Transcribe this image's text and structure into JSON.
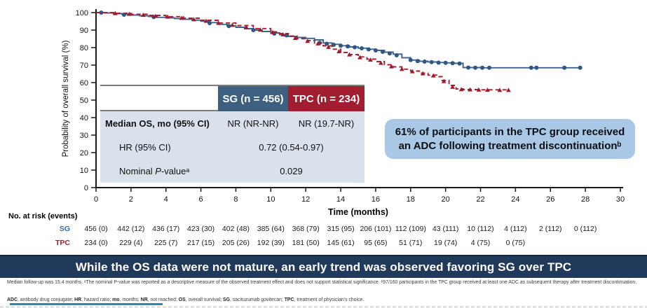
{
  "chart_data": {
    "type": "line",
    "subtype": "kaplan-meier-step",
    "title": "",
    "xlabel": "Time (months)",
    "ylabel": "Probability of overall survival (%)",
    "xlim": [
      0,
      30
    ],
    "ylim": [
      0,
      100
    ],
    "grid": false,
    "x_ticks": [
      0,
      2,
      4,
      6,
      8,
      10,
      12,
      14,
      16,
      18,
      20,
      22,
      24,
      26,
      28,
      30
    ],
    "y_ticks": [
      0,
      10,
      20,
      30,
      40,
      50,
      60,
      70,
      80,
      90,
      100
    ],
    "series": [
      {
        "name": "SG",
        "color": "#3d6590",
        "marker_color": "#2e5784",
        "style": "solid",
        "marker": "circle",
        "points": [
          [
            0,
            100
          ],
          [
            0.5,
            99.8
          ],
          [
            1,
            99.4
          ],
          [
            1.5,
            99
          ],
          [
            2,
            98.6
          ],
          [
            2.5,
            98.2
          ],
          [
            3,
            97.8
          ],
          [
            3.5,
            97.3
          ],
          [
            4,
            97
          ],
          [
            4.5,
            96.6
          ],
          [
            5,
            96.2
          ],
          [
            5.5,
            95.7
          ],
          [
            6,
            95.1
          ],
          [
            6.5,
            94.3
          ],
          [
            7,
            93.3
          ],
          [
            7.5,
            92.5
          ],
          [
            8,
            91.6
          ],
          [
            8.5,
            90.8
          ],
          [
            9,
            90
          ],
          [
            9.5,
            89.2
          ],
          [
            10,
            88.4
          ],
          [
            10.5,
            87.4
          ],
          [
            11,
            86.4
          ],
          [
            11.5,
            85.8
          ],
          [
            12,
            85.3
          ],
          [
            12.5,
            84.4
          ],
          [
            13,
            82.7
          ],
          [
            13.5,
            81.9
          ],
          [
            14,
            81.1
          ],
          [
            14.5,
            80.4
          ],
          [
            15,
            79.7
          ],
          [
            15.5,
            79.1
          ],
          [
            16,
            78.4
          ],
          [
            16.5,
            77.4
          ],
          [
            17,
            76.3
          ],
          [
            17.5,
            74.2
          ],
          [
            18,
            72.9
          ],
          [
            18.5,
            72.2
          ],
          [
            19,
            71.8
          ],
          [
            19.5,
            71.5
          ],
          [
            20,
            71.3
          ],
          [
            20.5,
            71
          ],
          [
            21,
            68.6
          ],
          [
            22,
            68.5
          ],
          [
            27.7,
            68.5
          ]
        ],
        "censor_marks": [
          [
            0.3,
            100
          ],
          [
            1.6,
            98.8
          ],
          [
            3.3,
            97.5
          ],
          [
            6.5,
            94
          ],
          [
            7.6,
            92.3
          ],
          [
            9,
            90
          ],
          [
            10.2,
            88
          ],
          [
            10.9,
            87
          ],
          [
            12.8,
            82.7
          ],
          [
            13.2,
            82.2
          ],
          [
            13.6,
            81.6
          ],
          [
            14,
            81.1
          ],
          [
            14.4,
            80.7
          ],
          [
            14.8,
            80.2
          ],
          [
            15.2,
            79.6
          ],
          [
            15.6,
            79
          ],
          [
            16,
            78.4
          ],
          [
            16.4,
            77.6
          ],
          [
            16.8,
            76.7
          ],
          [
            17.2,
            75.6
          ],
          [
            18,
            72.9
          ],
          [
            18.4,
            72.3
          ],
          [
            18.8,
            72
          ],
          [
            19.2,
            71.7
          ],
          [
            19.6,
            71.4
          ],
          [
            20,
            71.3
          ],
          [
            20.4,
            71.1
          ],
          [
            20.8,
            70.9
          ],
          [
            21.3,
            68.6
          ],
          [
            21.7,
            68.5
          ],
          [
            22.1,
            68.5
          ],
          [
            22.5,
            68.5
          ],
          [
            24.9,
            68.5
          ],
          [
            25.2,
            68.5
          ],
          [
            26.8,
            68.5
          ],
          [
            27.7,
            68.5
          ]
        ]
      },
      {
        "name": "TPC",
        "color": "#a81f2f",
        "marker_color": "#9c1c2c",
        "style": "dashed",
        "marker": "triangle",
        "points": [
          [
            0,
            100
          ],
          [
            1,
            99.6
          ],
          [
            2,
            99.1
          ],
          [
            3,
            98.4
          ],
          [
            4,
            97.7
          ],
          [
            5,
            96.8
          ],
          [
            6,
            95.6
          ],
          [
            7,
            94.1
          ],
          [
            8,
            92.6
          ],
          [
            9,
            90.9
          ],
          [
            10,
            89
          ],
          [
            10.5,
            88
          ],
          [
            11,
            86.6
          ],
          [
            11.5,
            85.1
          ],
          [
            12,
            84
          ],
          [
            12.5,
            82.6
          ],
          [
            13,
            81
          ],
          [
            13.5,
            79.1
          ],
          [
            14,
            77.2
          ],
          [
            14.5,
            76
          ],
          [
            15,
            74.7
          ],
          [
            15.5,
            73.4
          ],
          [
            16,
            72
          ],
          [
            16.5,
            70.2
          ],
          [
            17,
            69
          ],
          [
            17.5,
            67.7
          ],
          [
            18,
            66.6
          ],
          [
            18.5,
            65.4
          ],
          [
            19,
            64.3
          ],
          [
            19.5,
            63.4
          ],
          [
            19.8,
            61.2
          ],
          [
            20.2,
            58.4
          ],
          [
            20.6,
            56.4
          ],
          [
            21,
            56
          ],
          [
            22,
            55.9
          ],
          [
            23.6,
            55.7
          ]
        ],
        "censor_marks": [
          [
            1.1,
            99.6
          ],
          [
            1.9,
            99.2
          ],
          [
            2.7,
            98.6
          ],
          [
            3.4,
            98
          ],
          [
            4.1,
            97.6
          ],
          [
            4.9,
            96.9
          ],
          [
            5.6,
            96.1
          ],
          [
            6.3,
            95.2
          ],
          [
            7,
            94.1
          ],
          [
            7.8,
            92.9
          ],
          [
            8.6,
            91.6
          ],
          [
            9.4,
            90.2
          ],
          [
            10.1,
            88.8
          ],
          [
            10.7,
            87.5
          ],
          [
            11.4,
            85.4
          ],
          [
            12.1,
            83.7
          ],
          [
            12.7,
            82.3
          ],
          [
            13.3,
            80.3
          ],
          [
            13.9,
            77.8
          ],
          [
            14.5,
            76
          ],
          [
            15.1,
            74.4
          ],
          [
            15.7,
            73
          ],
          [
            16.3,
            71.2
          ],
          [
            16.9,
            69.2
          ],
          [
            17.5,
            67.7
          ],
          [
            18.1,
            66.4
          ],
          [
            18.7,
            65.2
          ],
          [
            19.3,
            64
          ],
          [
            19.9,
            60.8
          ],
          [
            20.4,
            57.5
          ],
          [
            20.9,
            56.1
          ],
          [
            21.4,
            56
          ],
          [
            21.9,
            55.9
          ],
          [
            22.4,
            55.8
          ],
          [
            23.1,
            55.7
          ],
          [
            23.6,
            55.7
          ]
        ]
      }
    ]
  },
  "stats_table": {
    "header_sg": "SG (n = 456)",
    "header_tpc": "TPC (n = 234)",
    "header_sg_color": "#3e6080",
    "header_tpc_color": "#a11d30",
    "row1_label": "Median OS, mo (95% CI)",
    "row1_sg": "NR (NR-NR)",
    "row1_tpc": "NR (19.7-NR)",
    "row2_label": "HR (95% CI)",
    "row2_value": "0.72 (0.54-0.97)",
    "row3_label_prefix": "Nominal ",
    "row3_label_italic": "P",
    "row3_label_suffix": "-valueᵃ",
    "row3_value": "0.029"
  },
  "callout": {
    "text": "61% of participants in the TPC group received an ADC following treatment discontinuationᵇ",
    "background": "#a8c8e6"
  },
  "risk_table": {
    "title": "No. at risk (events)",
    "series": [
      {
        "label": "SG",
        "color": "#3a6a9c",
        "values": [
          "456 (0)",
          "442 (12)",
          "436 (17)",
          "423 (30)",
          "402 (48)",
          "385 (64)",
          "368 (79)",
          "315 (95)",
          "206 (101)",
          "112 (109)",
          "43 (111)",
          "10 (112)",
          "4 (112)",
          "2 (112)",
          "0 (112)"
        ]
      },
      {
        "label": "TPC",
        "color": "#a0202f",
        "values": [
          "234 (0)",
          "229 (4)",
          "225 (7)",
          "217 (15)",
          "205 (26)",
          "192 (39)",
          "181 (50)",
          "145 (61)",
          "95 (65)",
          "51 (71)",
          "19 (74)",
          "4 (75)",
          "0 (75)"
        ]
      }
    ]
  },
  "banner": {
    "text": "While the OS data were not mature, an early trend was observed favoring SG over TPC",
    "background": "#21395a"
  },
  "footnotes": {
    "line1": "Median follow-up was 15.4 months. ᵃThe nominal P-value was reported as a descriptive measure of the observed treatment effect and does not support statistical significance. ᵇ97/160 participants in the TPC group received at least one ADC as subsequent therapy after treatment discontinuation.",
    "abbreviations": [
      {
        "t": "ADC",
        "b": true
      },
      {
        "t": ", antibody drug conjugate; ",
        "b": false
      },
      {
        "t": "HR",
        "b": true
      },
      {
        "t": ", hazard ratio; ",
        "b": false
      },
      {
        "t": "mo",
        "b": true
      },
      {
        "t": ", months; ",
        "b": false
      },
      {
        "t": "NR",
        "b": true
      },
      {
        "t": ", not reached; ",
        "b": false
      },
      {
        "t": "OS",
        "b": true
      },
      {
        "t": ", overall survival; ",
        "b": false
      },
      {
        "t": "SG",
        "b": true
      },
      {
        "t": ", sacituzumab govitecan; ",
        "b": false
      },
      {
        "t": "TPC",
        "b": true
      },
      {
        "t": ", treatment of physician's choice.",
        "b": false
      }
    ]
  }
}
